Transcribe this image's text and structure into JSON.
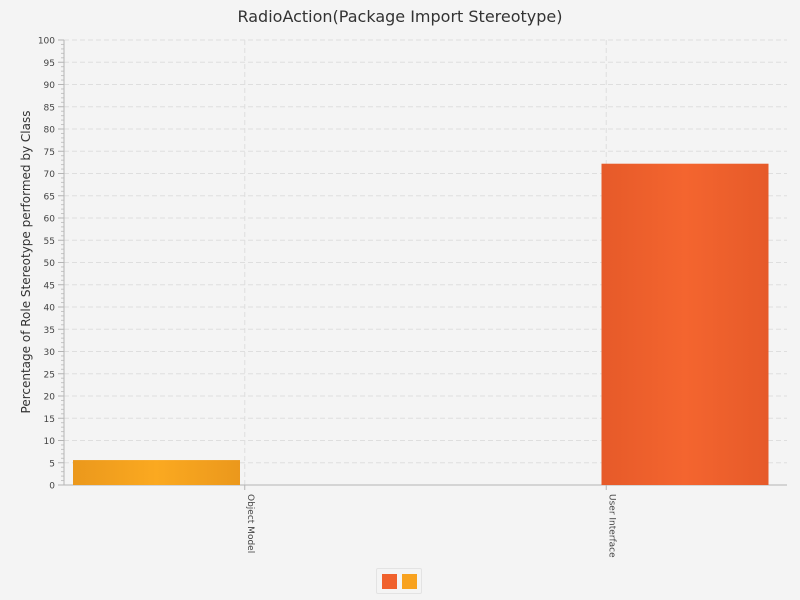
{
  "chart_data": {
    "type": "bar",
    "title": "RadioAction(Package Import Stereotype)",
    "ylabel": "Percentage of Role Stereotype performed by Class",
    "xlabel": "",
    "categories": [
      "Object Model",
      "User Interface"
    ],
    "series": [
      {
        "values": [
          5.6,
          0
        ],
        "color": "#f8a21f"
      },
      {
        "values": [
          0,
          72.2
        ],
        "color": "#f0612d"
      }
    ],
    "ylim": [
      0,
      100
    ],
    "y_ticks": [
      "0",
      "5",
      "10",
      "15",
      "20",
      "25",
      "30",
      "35",
      "40",
      "45",
      "50",
      "55",
      "60",
      "65",
      "70",
      "75",
      "80",
      "85",
      "90",
      "95",
      "100"
    ],
    "grid": true,
    "legend_position": "bottom"
  },
  "legend": {
    "items": [
      {
        "color": "#f0612d"
      },
      {
        "color": "#f8a21f"
      }
    ]
  }
}
